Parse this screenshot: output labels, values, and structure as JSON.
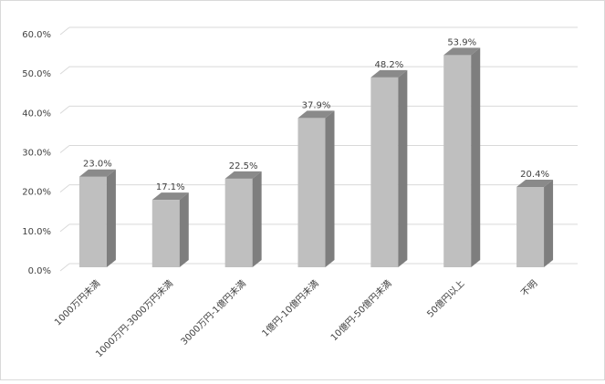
{
  "chart_data": {
    "type": "bar3d",
    "categories": [
      "1000万円未満",
      "1000万円-3000万円未満",
      "3000万円-1億円未満",
      "1億円-10億円未満",
      "10億円-50億円未満",
      "50億円以上",
      "不明"
    ],
    "values": [
      23.0,
      17.1,
      22.5,
      37.9,
      48.2,
      53.9,
      20.4
    ],
    "value_labels": [
      "23.0%",
      "17.1%",
      "22.5%",
      "37.9%",
      "48.2%",
      "53.9%",
      "20.4%"
    ],
    "color": "#bfbfbf",
    "ylim": [
      0,
      60
    ],
    "yticks": [
      {
        "value": 0,
        "label": "0.0%"
      },
      {
        "value": 10,
        "label": "10.0%"
      },
      {
        "value": 20,
        "label": "20.0%"
      },
      {
        "value": 30,
        "label": "30.0%"
      },
      {
        "value": 40,
        "label": "40.0%"
      },
      {
        "value": 50,
        "label": "50.0%"
      },
      {
        "value": 60,
        "label": "60.0%"
      }
    ],
    "grid": true
  }
}
